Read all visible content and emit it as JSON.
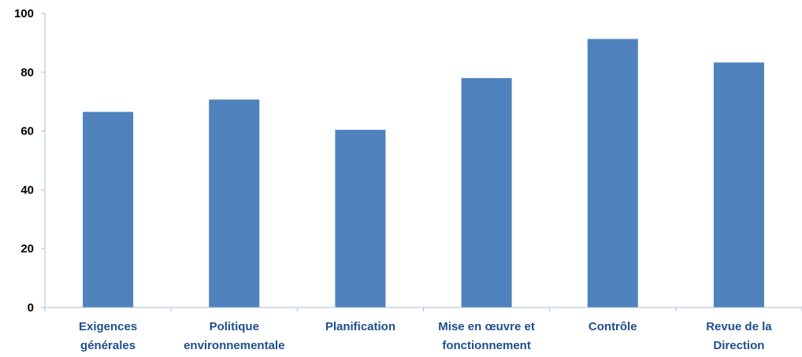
{
  "colors": {
    "bar": "#4f81bd",
    "axis": "#a6bfdc",
    "category_text": "#1f4e8c",
    "tick_text": "#000000"
  },
  "chart_data": {
    "type": "bar",
    "title": "",
    "xlabel": "",
    "ylabel": "",
    "ylim": [
      0,
      100
    ],
    "yticks": [
      0,
      20,
      40,
      60,
      80,
      100
    ],
    "grid": false,
    "legend": "none",
    "categories": [
      [
        "Exigences",
        "générales"
      ],
      [
        "Politique",
        "environnementale"
      ],
      [
        "Planification"
      ],
      [
        "Mise en œuvre et",
        "fonctionnement"
      ],
      [
        "Contrôle"
      ],
      [
        "Revue de la",
        "Direction"
      ]
    ],
    "values": [
      66.5,
      70.7,
      60.4,
      78,
      91.3,
      83.3
    ]
  }
}
